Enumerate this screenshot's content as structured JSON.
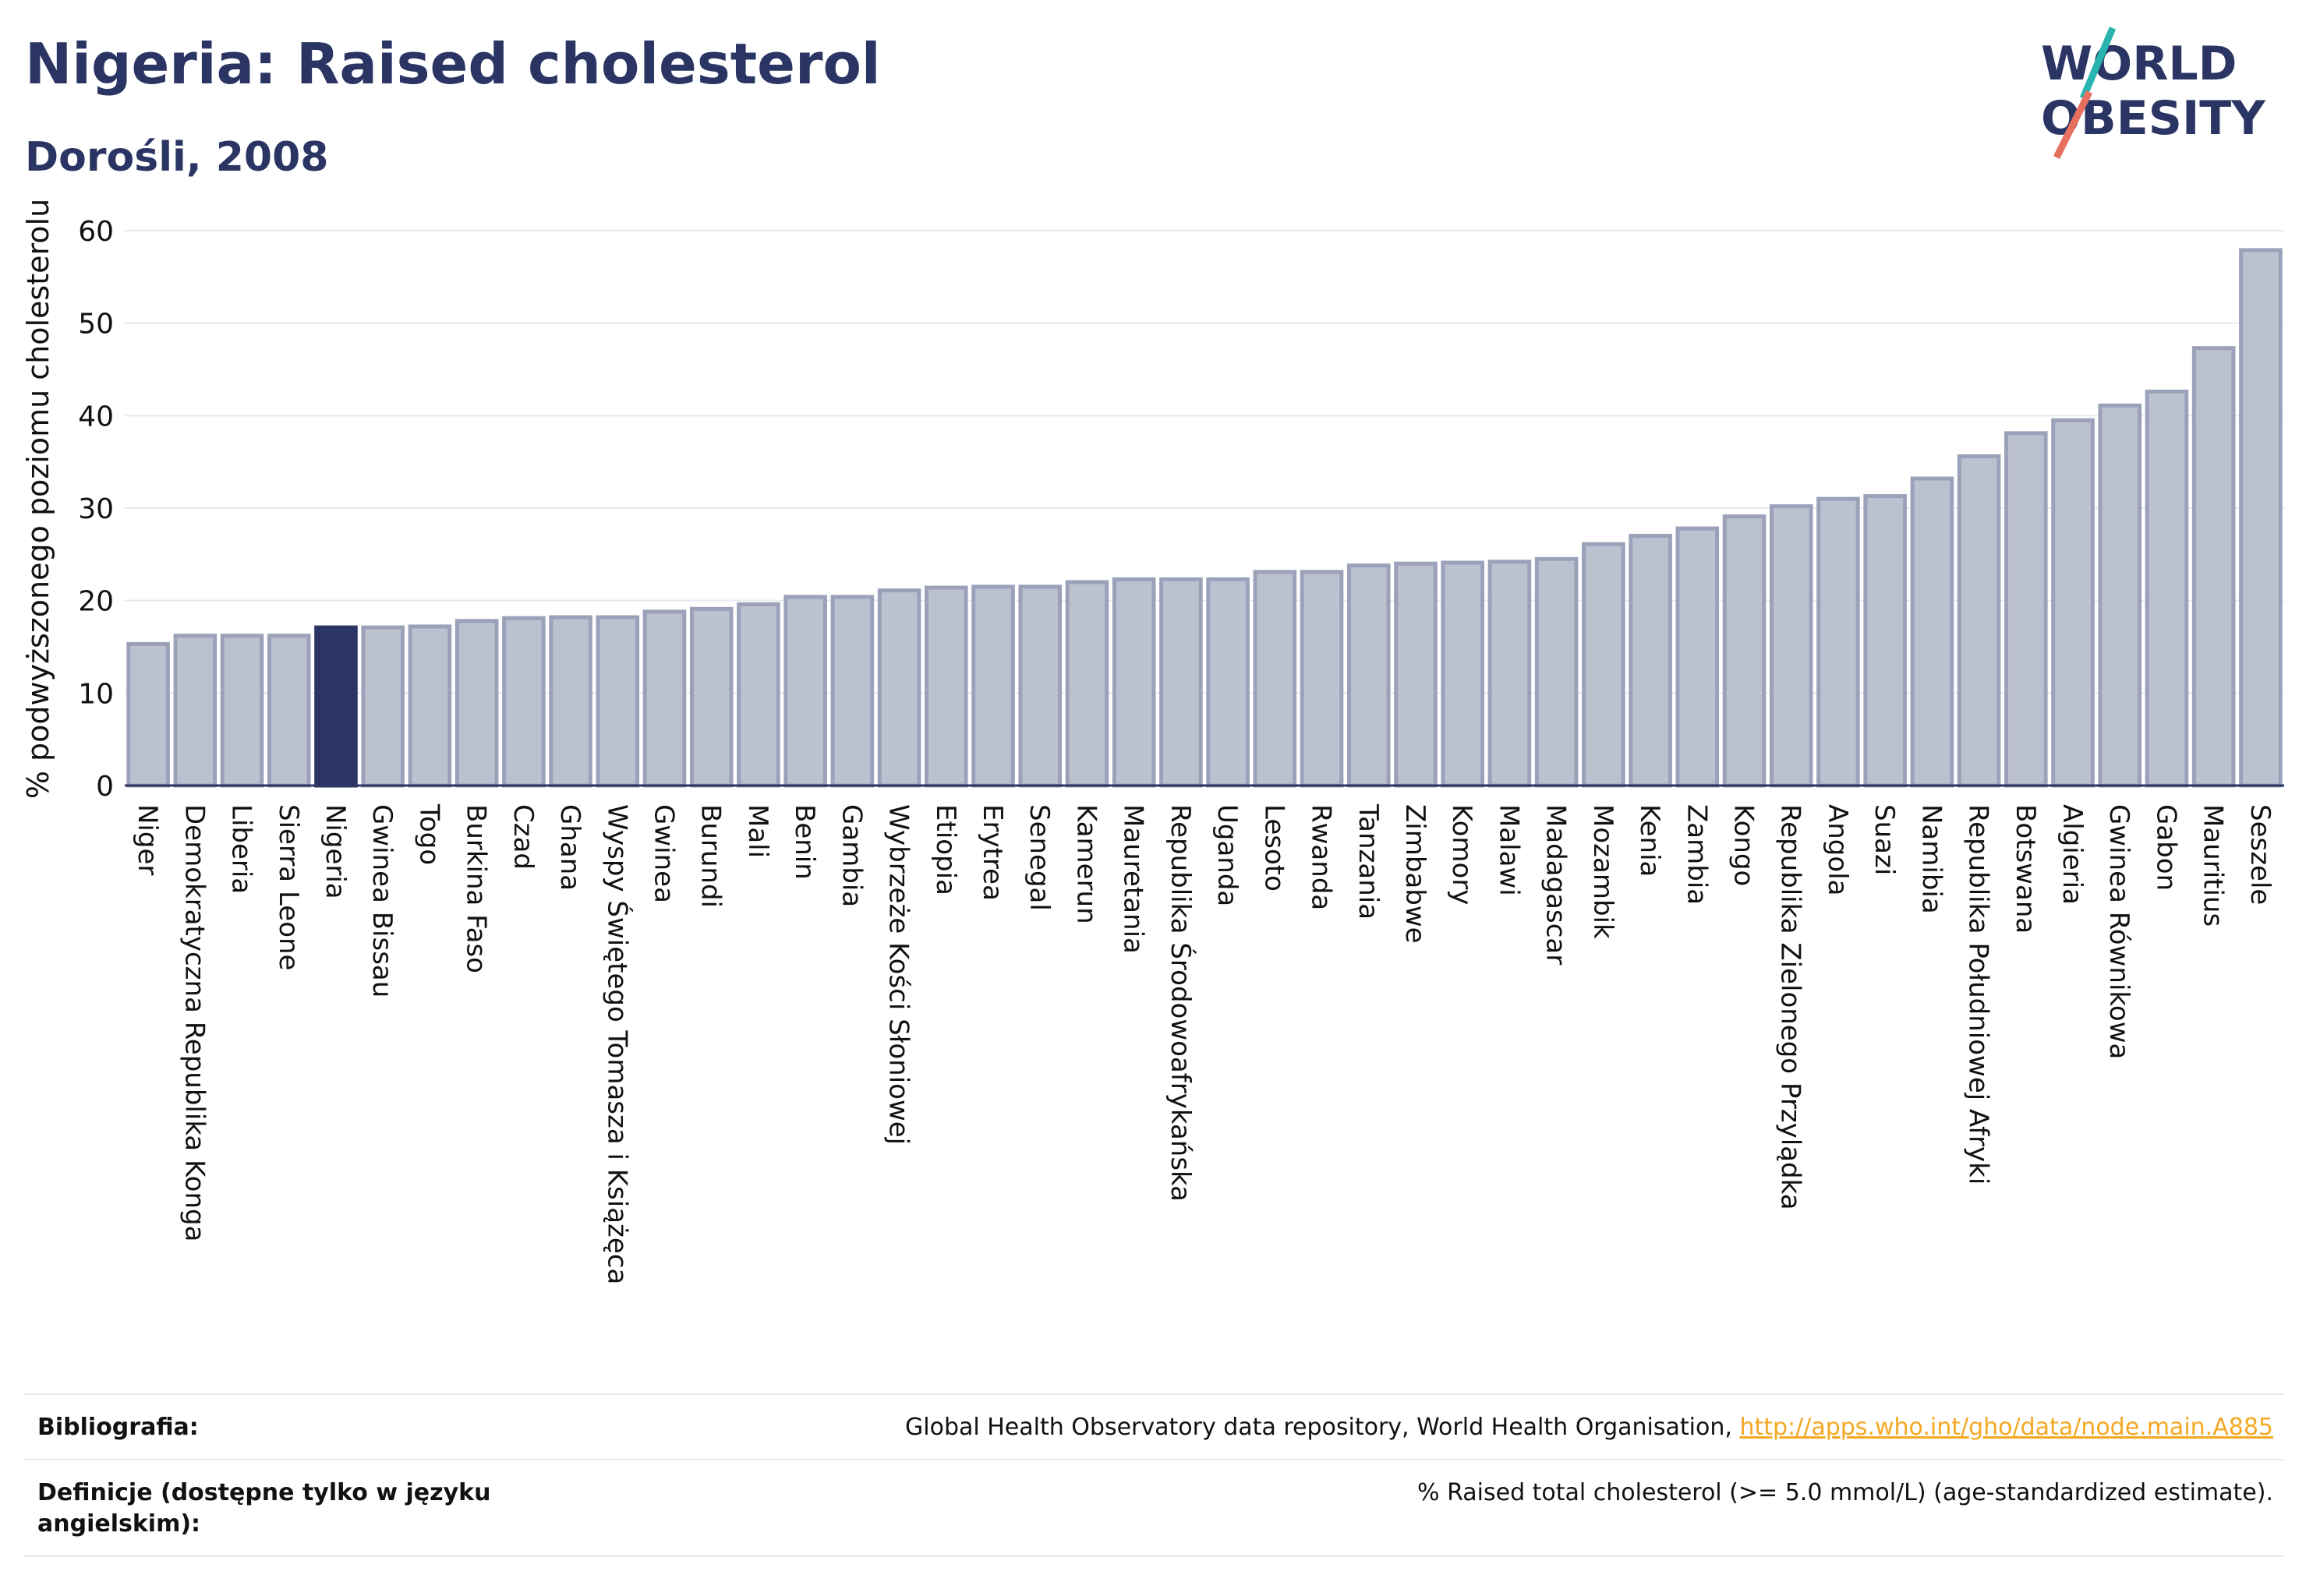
{
  "header": {
    "title": "Nigeria: Raised cholesterol",
    "subtitle": "Dorośli, 2008",
    "logo_line1": "WORLD",
    "logo_line2": "OBESITY"
  },
  "colors": {
    "bar": "#bcc1d0",
    "bar_edge": "#9aa1b9",
    "highlight": "#2a3563",
    "axis": "#2a3563",
    "grid": "#e8e9ef",
    "link": "#f4a823"
  },
  "chart_data": {
    "type": "bar",
    "title": "",
    "xlabel": "",
    "ylabel": "% podwyższonego poziomu cholesterolu",
    "ylim": [
      0,
      60
    ],
    "yticks": [
      0,
      10,
      20,
      30,
      40,
      50,
      60
    ],
    "grid": true,
    "highlight": "Nigeria",
    "categories": [
      "Niger",
      "Demokratyczna Republika Konga",
      "Liberia",
      "Sierra Leone",
      "Nigeria",
      "Gwinea Bissau",
      "Togo",
      "Burkina Faso",
      "Czad",
      "Ghana",
      "Wyspy Świętego Tomasza i Książęca",
      "Gwinea",
      "Burundi",
      "Mali",
      "Benin",
      "Gambia",
      "Wybrzeże Kości Słoniowej",
      "Etiopia",
      "Erytrea",
      "Senegal",
      "Kamerun",
      "Mauretania",
      "Republika Środowoafrykańska",
      "Uganda",
      "Lesoto",
      "Rwanda",
      "Tanzania",
      "Zimbabwe",
      "Komory",
      "Malawi",
      "Madagascar",
      "Mozambik",
      "Kenia",
      "Zambia",
      "Kongo",
      "Republika Zielonego Przylądka",
      "Angola",
      "Suazi",
      "Namibia",
      "Republika Południowej Afryki",
      "Botswana",
      "Algieria",
      "Gwinea Równikowa",
      "Gabon",
      "Mauritius",
      "Seszele"
    ],
    "values": [
      15.3,
      16.2,
      16.2,
      16.2,
      17.1,
      17.1,
      17.2,
      17.8,
      18.1,
      18.2,
      18.2,
      18.8,
      19.1,
      19.6,
      20.4,
      20.4,
      21.1,
      21.4,
      21.5,
      21.5,
      22.0,
      22.3,
      22.3,
      22.3,
      23.1,
      23.1,
      23.8,
      24.0,
      24.1,
      24.2,
      24.5,
      26.1,
      27.0,
      27.8,
      29.1,
      30.2,
      31.0,
      31.3,
      33.2,
      35.6,
      38.1,
      39.5,
      41.1,
      42.6,
      47.3,
      57.9
    ]
  },
  "footer": {
    "bib_label": "Bibliografia:",
    "bib_text": "Global Health Observatory data repository, World Health Organisation, ",
    "bib_link": "http://apps.who.int/gho/data/node.main.A885",
    "def_label": "Definicje (dostępne tylko w języku angielskim):",
    "def_text": "% Raised total cholesterol (>= 5.0 mmol/L) (age-standardized estimate)."
  }
}
